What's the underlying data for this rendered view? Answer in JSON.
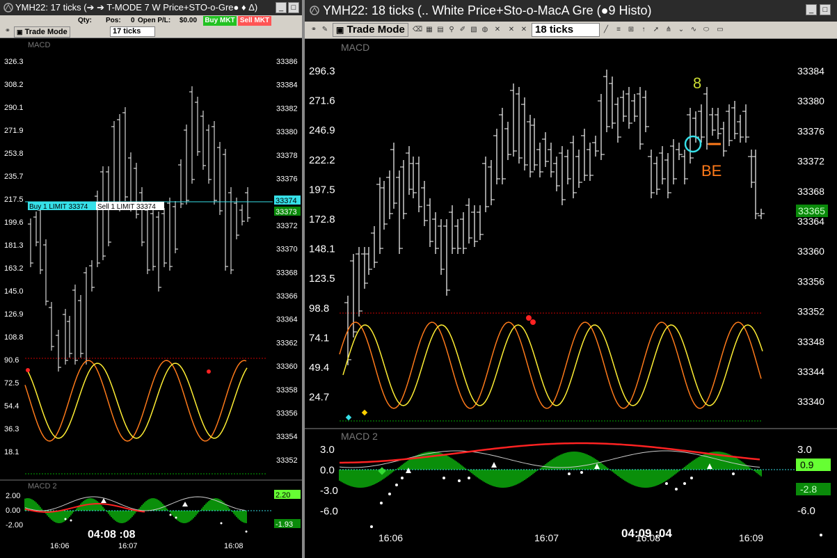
{
  "left": {
    "title": "YMH22: 17 ticks (➔ ➔ T-MODE 7 W Price+STO-o-Gre● ♦ Δ)",
    "toolbar": {
      "qty_label": "Qty:",
      "pos_label": "Pos:",
      "pos_value": "0",
      "open_pl_label": "Open P/L:",
      "open_pl_value": "$0.00",
      "buy_mkt": "Buy MKT",
      "sell_mkt": "Sell MKT",
      "trade_mode": "Trade Mode",
      "interval": "17 ticks"
    },
    "panel_top_label": "MACD",
    "panel_bottom_label": "MACD 2",
    "osc_ticks": [
      "326.3",
      "308.2",
      "290.1",
      "271.9",
      "253.8",
      "235.7",
      "217.5",
      "199.6",
      "181.3",
      "163.2",
      "145.0",
      "126.9",
      "108.8",
      "90.6",
      "72.5",
      "54.4",
      "36.3",
      "18.1"
    ],
    "price_ticks": [
      "33386",
      "33384",
      "33382",
      "33380",
      "33378",
      "33376",
      "33374",
      "33372",
      "33370",
      "33368",
      "33366",
      "33364",
      "33362",
      "33360",
      "33358",
      "33356",
      "33354",
      "33352"
    ],
    "last_price_tag": "33374",
    "bid_tag": "33373",
    "order_buy": "Buy 1 LIMIT 33374",
    "order_sell": "Sell 1 LIMIT 33374",
    "macd2_ticks": [
      "2.00",
      "0.00",
      "-2.00"
    ],
    "macd2_tag_up": "2.20",
    "macd2_tag_down": "-1.93",
    "time_labels": [
      "16:06",
      "16:07",
      "16:08"
    ],
    "clock": "04:08 :08"
  },
  "right": {
    "title": "YMH22: 18 ticks (.. White Price+Sto-o-MacA Gre (●9 Histo)",
    "toolbar": {
      "trade_mode": "Trade Mode",
      "interval": "18 ticks"
    },
    "panel_top_label": "MACD",
    "panel_bottom_label": "MACD 2",
    "osc_ticks": [
      "296.3",
      "271.6",
      "246.9",
      "222.2",
      "197.5",
      "172.8",
      "148.1",
      "123.5",
      "98.8",
      "74.1",
      "49.4",
      "24.7"
    ],
    "price_ticks": [
      "33384",
      "33380",
      "33376",
      "33372",
      "33368",
      "33364",
      "33360",
      "33356",
      "33352",
      "33348",
      "33344",
      "33340"
    ],
    "last_price_tag": "33365",
    "annotation_number": "8",
    "annotation_text": "BE",
    "macd2_ticks": [
      "3.0",
      "0.0",
      "-3.0",
      "-6.0"
    ],
    "macd2_tag_up": "0.9",
    "macd2_tag_down": "-2.8",
    "macd2_right_ticks": [
      "3.0",
      "-6.0"
    ],
    "time_labels": [
      "16:06",
      "16:07",
      "16:08",
      "16:09"
    ],
    "clock": "04:09 :04"
  },
  "colors": {
    "cyan": "#36e0e8",
    "green_tag": "#22cc22",
    "bright_green": "#66ff33",
    "orange": "#ff7a1a",
    "yellow": "#ffee33",
    "dark_green_hist": "#0a8f0a",
    "red_dots": "#ff2222"
  }
}
